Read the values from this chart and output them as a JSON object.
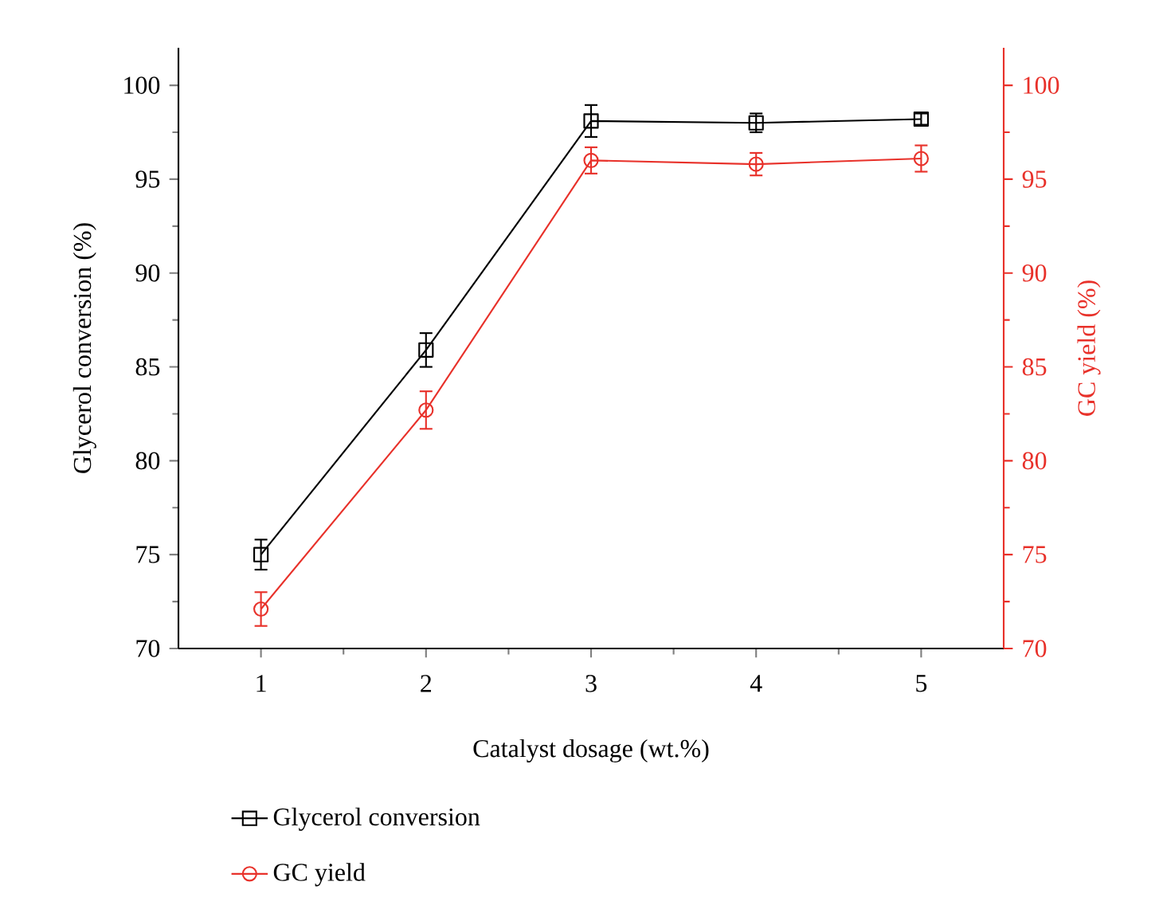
{
  "chart_data": {
    "type": "line",
    "xlabel": "Catalyst dosage (wt.%)",
    "ylabel": "Glycerol conversion (%)",
    "y2label": "GC yield (%)",
    "x": [
      1,
      2,
      3,
      4,
      5
    ],
    "series": [
      {
        "name": "Glycerol conversion",
        "color": "#000000",
        "marker": "square",
        "values": [
          75.0,
          85.9,
          98.1,
          98.0,
          98.2
        ],
        "errors": [
          0.8,
          0.9,
          0.85,
          0.5,
          0.3
        ]
      },
      {
        "name": "GC yield",
        "color": "#e8312a",
        "marker": "circle",
        "axis": "y2",
        "values": [
          72.1,
          82.7,
          96.0,
          95.8,
          96.1
        ],
        "errors": [
          0.9,
          1.0,
          0.7,
          0.6,
          0.7
        ]
      }
    ],
    "xlim": [
      0.5,
      5.5
    ],
    "xticks": [
      1,
      2,
      3,
      4,
      5
    ],
    "ylim": [
      70,
      102
    ],
    "yticks": [
      70,
      75,
      80,
      85,
      90,
      95,
      100
    ],
    "y2lim": [
      70,
      102
    ],
    "y2ticks": [
      70,
      75,
      80,
      85,
      90,
      95,
      100
    ],
    "legend": "bottom",
    "line_style": "solid"
  }
}
